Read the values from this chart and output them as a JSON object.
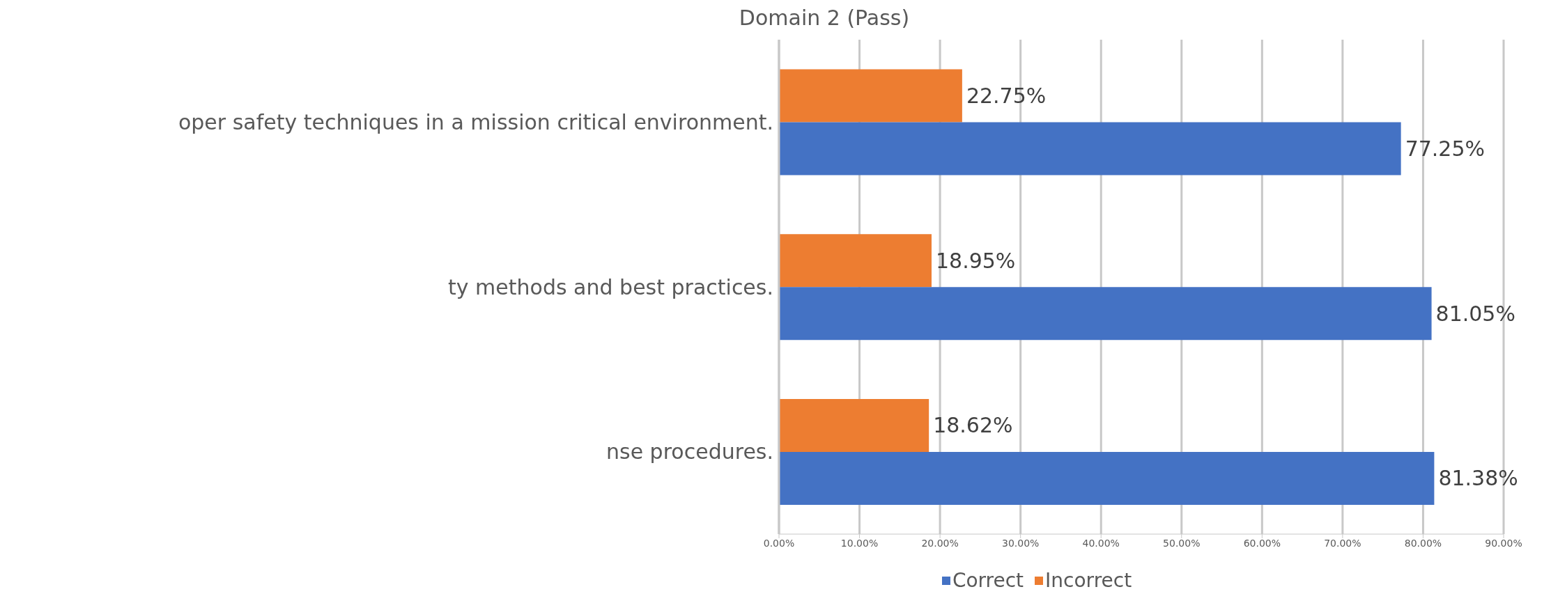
{
  "chart_data": {
    "type": "bar",
    "orientation": "horizontal",
    "title": "Domain 2 (Pass)",
    "categories": [
      "oper safety techniques in a mission critical environment.",
      "ty methods and best practices.",
      "nse procedures."
    ],
    "series": [
      {
        "name": "Correct",
        "color": "#4472c4",
        "values": [
          77.25,
          81.05,
          81.38
        ],
        "value_labels": [
          "77.25%",
          "81.05%",
          "81.38%"
        ]
      },
      {
        "name": "Incorrect",
        "color": "#ed7d31",
        "values": [
          22.75,
          18.95,
          18.62
        ],
        "value_labels": [
          "22.75%",
          "18.95%",
          "18.62%"
        ]
      }
    ],
    "xlim": [
      0,
      90
    ],
    "xticks": [
      {
        "value": 0,
        "label": "0.00%"
      },
      {
        "value": 10,
        "label": "10.00%"
      },
      {
        "value": 20,
        "label": "20.00%"
      },
      {
        "value": 30,
        "label": "30.00%"
      },
      {
        "value": 40,
        "label": "40.00%"
      },
      {
        "value": 50,
        "label": "50.00%"
      },
      {
        "value": 60,
        "label": "60.00%"
      },
      {
        "value": 70,
        "label": "70.00%"
      },
      {
        "value": 80,
        "label": "80.00%"
      },
      {
        "value": 90,
        "label": "90.00%"
      }
    ],
    "grid": "x",
    "legend": "bottom"
  }
}
